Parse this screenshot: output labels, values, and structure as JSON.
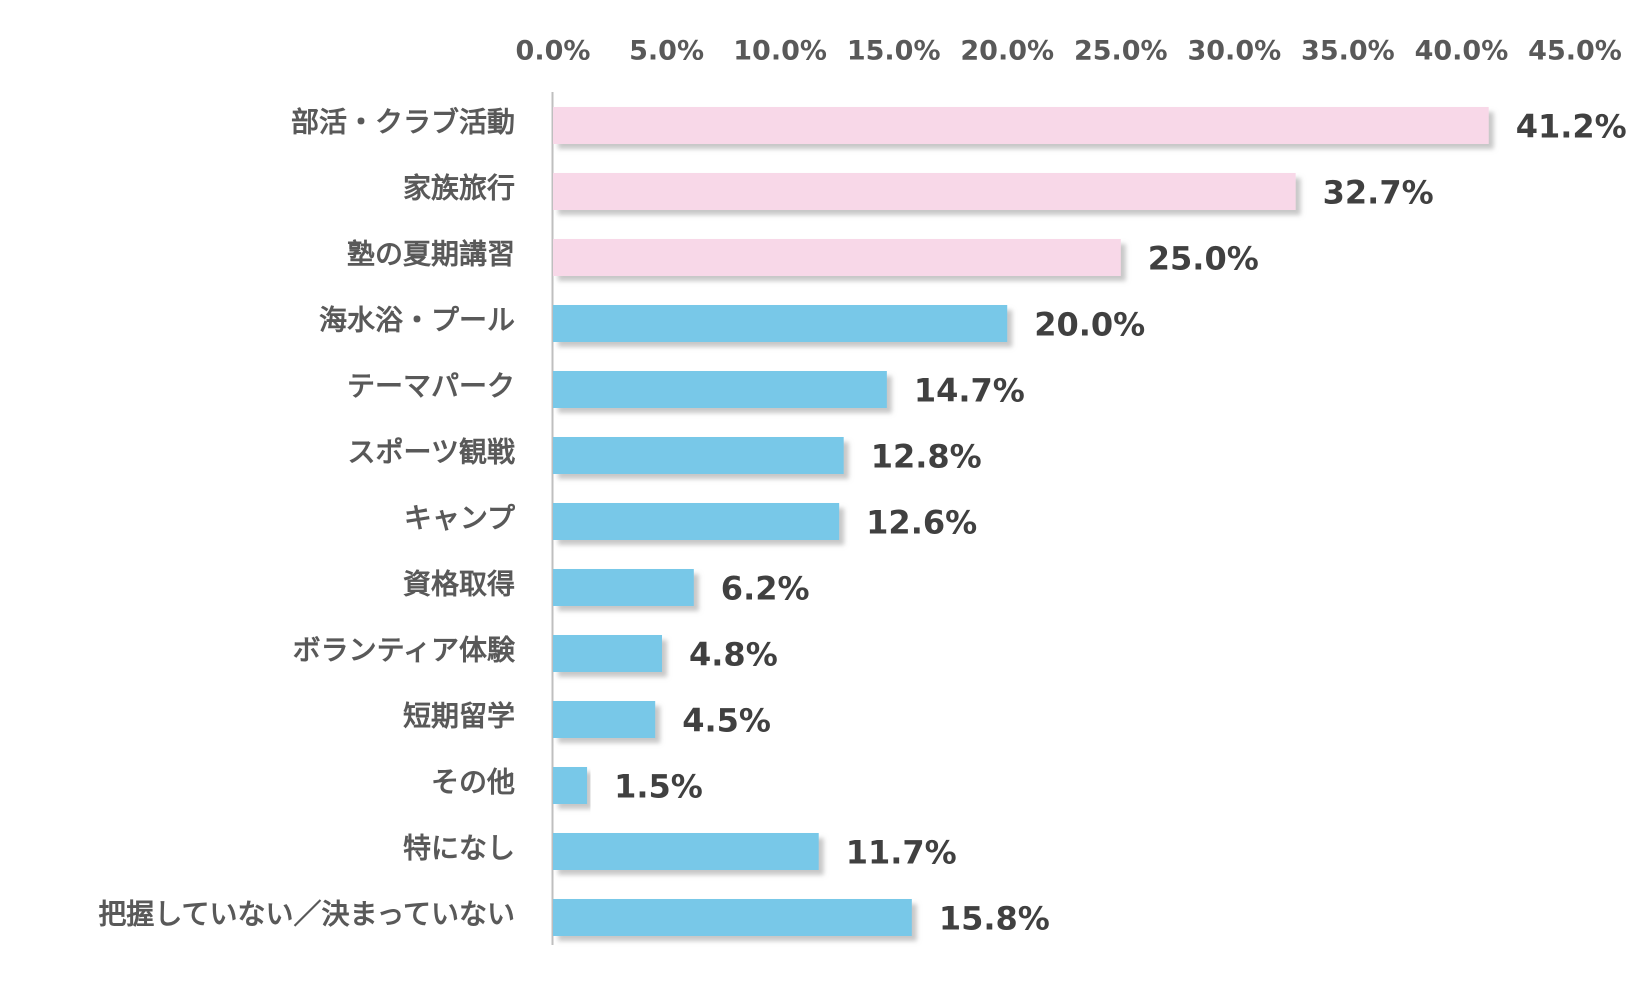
{
  "chart_data": {
    "type": "bar",
    "orientation": "horizontal",
    "title": "",
    "xlabel": "",
    "ylabel": "",
    "xlim": [
      0,
      45
    ],
    "tick_values": [
      0,
      5,
      10,
      15,
      20,
      25,
      30,
      35,
      40,
      45
    ],
    "tick_labels": [
      "0.0%",
      "5.0%",
      "10.0%",
      "15.0%",
      "20.0%",
      "25.0%",
      "30.0%",
      "35.0%",
      "40.0%",
      "45.0%"
    ],
    "axis_position": "top",
    "grid": false,
    "categories": [
      "部活・クラブ活動",
      "家族旅行",
      "塾の夏期講習",
      "海水浴・プール",
      "テーマパーク",
      "スポーツ観戦",
      "キャンプ",
      "資格取得",
      "ボランティア体験",
      "短期留学",
      "その他",
      "特になし",
      "把握していない／決まっていない"
    ],
    "values": [
      41.2,
      32.7,
      25.0,
      20.0,
      14.7,
      12.8,
      12.6,
      6.2,
      4.8,
      4.5,
      1.5,
      11.7,
      15.8
    ],
    "value_labels": [
      "41.2%",
      "32.7%",
      "25.0%",
      "20.0%",
      "14.7%",
      "12.8%",
      "12.6%",
      "6.2%",
      "4.8%",
      "4.5%",
      "1.5%",
      "11.7%",
      "15.8%"
    ],
    "highlighted_count": 3,
    "colors": {
      "highlight": "#f8d8e8",
      "normal": "#78c8e8",
      "shadow": "#bfbfbf",
      "axis": "#bfbfbf"
    }
  }
}
